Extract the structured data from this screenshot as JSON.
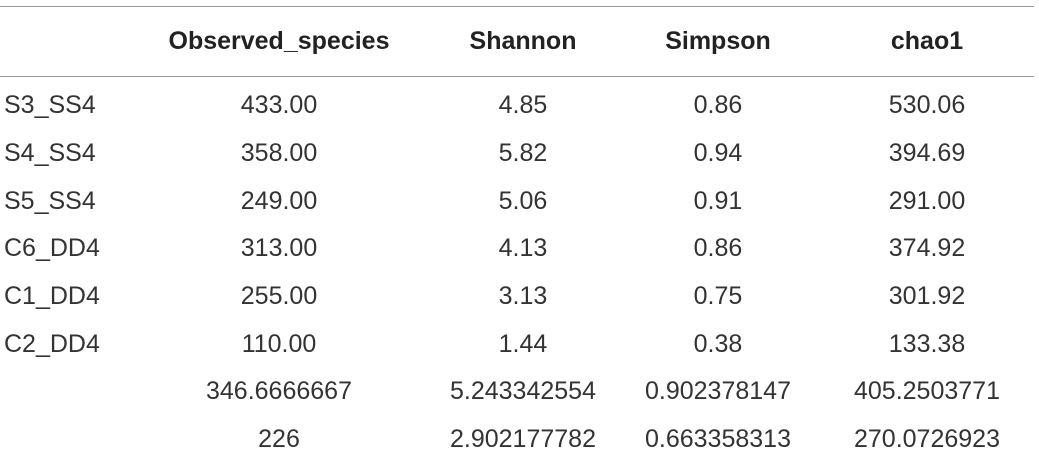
{
  "table": {
    "columns": [
      "",
      "Observed_species",
      "Shannon",
      "Simpson",
      "chao1"
    ],
    "rows": [
      {
        "label": "S3_SS4",
        "observed_species": "433.00",
        "shannon": "4.85",
        "simpson": "0.86",
        "chao1": "530.06"
      },
      {
        "label": "S4_SS4",
        "observed_species": "358.00",
        "shannon": "5.82",
        "simpson": "0.94",
        "chao1": "394.69"
      },
      {
        "label": "S5_SS4",
        "observed_species": "249.00",
        "shannon": "5.06",
        "simpson": "0.91",
        "chao1": "291.00"
      },
      {
        "label": "C6_DD4",
        "observed_species": "313.00",
        "shannon": "4.13",
        "simpson": "0.86",
        "chao1": "374.92"
      },
      {
        "label": "C1_DD4",
        "observed_species": "255.00",
        "shannon": "3.13",
        "simpson": "0.75",
        "chao1": "301.92"
      },
      {
        "label": "C2_DD4",
        "observed_species": "110.00",
        "shannon": "1.44",
        "simpson": "0.38",
        "chao1": "133.38"
      },
      {
        "label": "",
        "observed_species": "346.6666667",
        "shannon": "5.243342554",
        "simpson": "0.902378147",
        "chao1": "405.2503771"
      },
      {
        "label": "",
        "observed_species": "226",
        "shannon": "2.902177782",
        "simpson": "0.663358313",
        "chao1": "270.0726923"
      }
    ]
  }
}
